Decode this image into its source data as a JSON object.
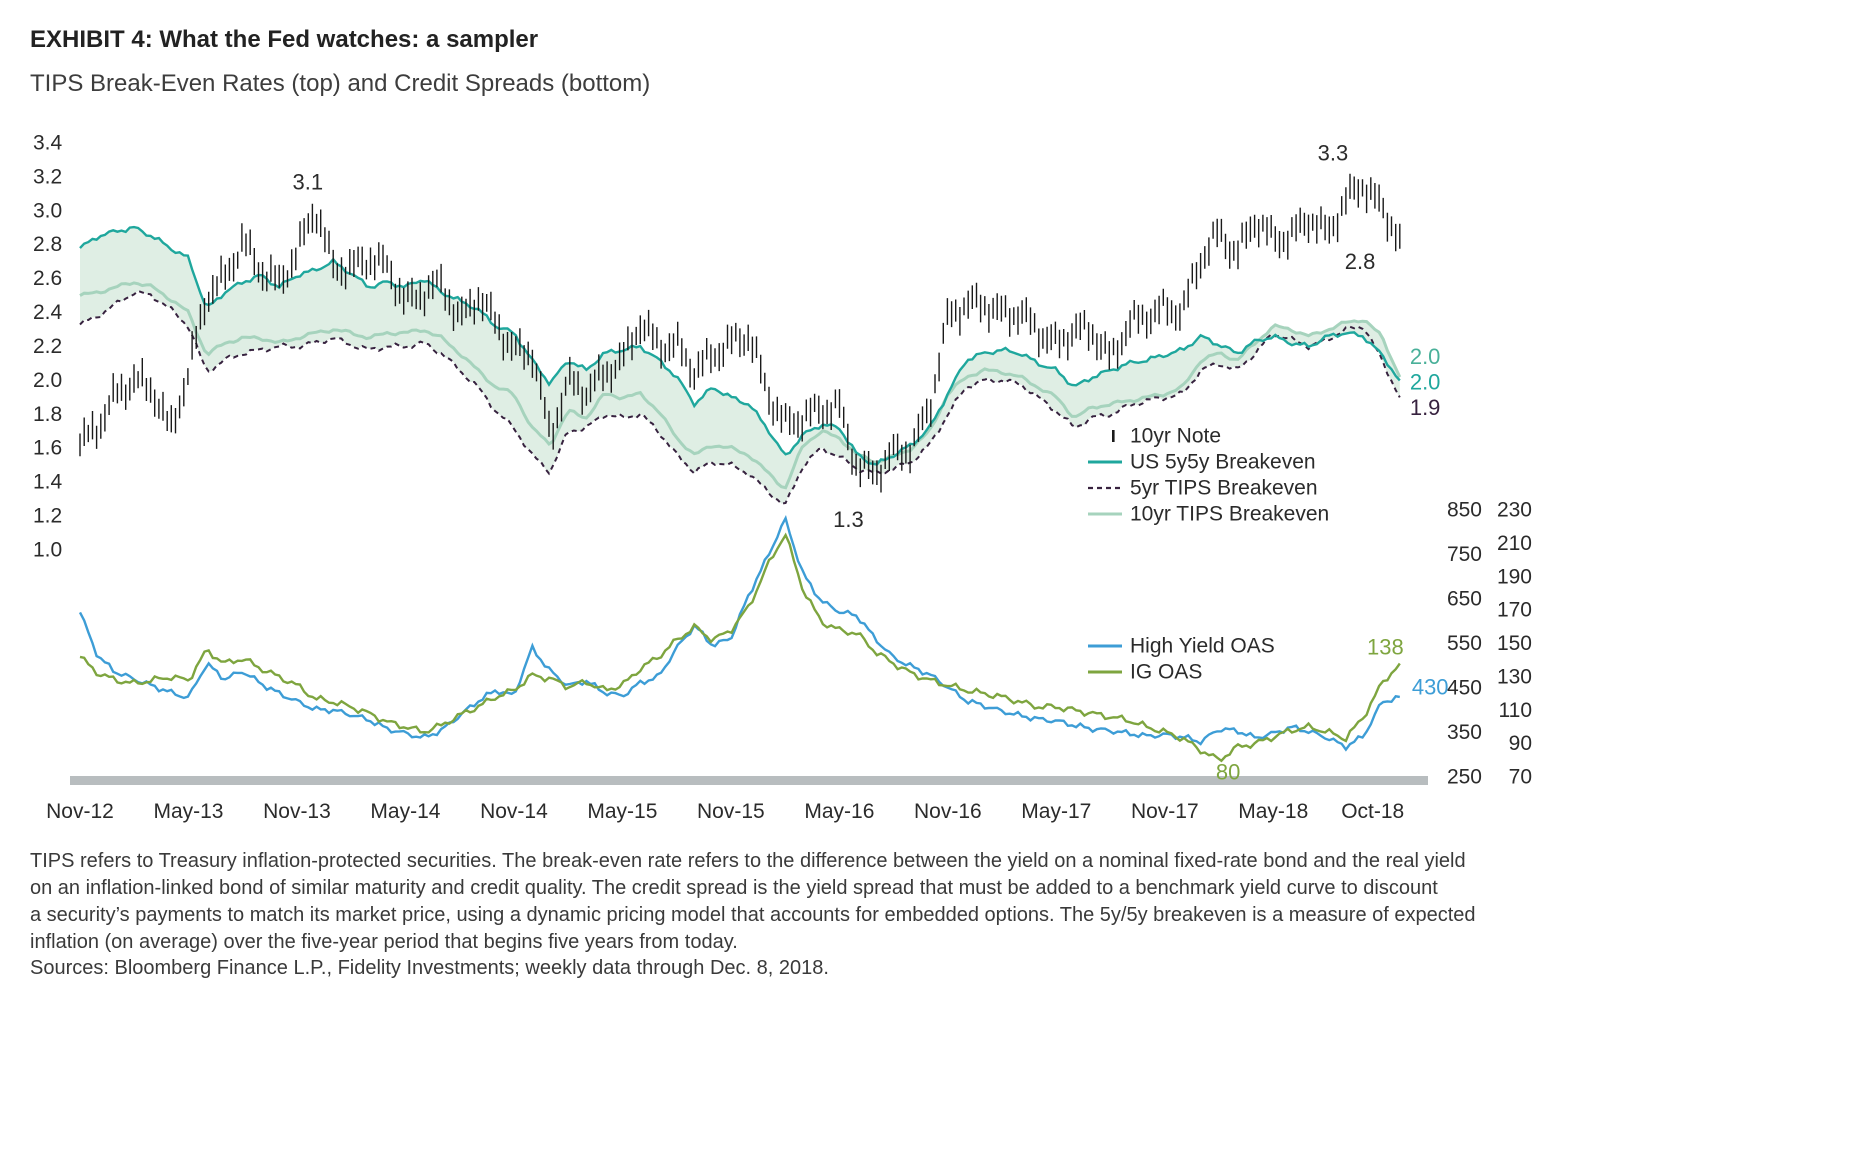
{
  "header": {
    "title": "EXHIBIT 4: What the Fed watches: a sampler",
    "subtitle": "TIPS Break-Even Rates (top) and Credit Spreads (bottom)"
  },
  "footer": {
    "lines": [
      "TIPS refers to Treasury inflation-protected securities. The break-even rate refers to the difference between the yield on a nominal fixed-rate bond and the real yield",
      "on an inflation-linked bond of similar maturity and credit quality. The credit spread is the yield spread that must be added to a benchmark yield curve to discount",
      "a security’s payments to match its market price, using a dynamic pricing model that accounts for embedded options. The 5y/5y breakeven is a measure of expected",
      "inflation (on average) over the five-year period that begins five years from today."
    ],
    "sources": "Sources: Bloomberg Finance L.P., Fidelity Investments; weekly data through Dec. 8, 2018."
  },
  "chart_data": {
    "type": "line",
    "title": "TIPS Break-Even Rates (top) and Credit Spreads (bottom)",
    "x_axis": {
      "start": "Nov-2012",
      "end": "Dec-2018",
      "values_frequency": "monthly",
      "tick_labels": [
        "Nov-12",
        "May-13",
        "Nov-13",
        "May-14",
        "Nov-14",
        "May-15",
        "Nov-15",
        "May-16",
        "Nov-16",
        "May-17",
        "Nov-17",
        "May-18",
        "Oct-18"
      ],
      "tick_month_index": [
        0,
        6,
        12,
        18,
        24,
        30,
        36,
        42,
        48,
        54,
        60,
        66,
        71.5
      ]
    },
    "top_panel": {
      "y_axis": {
        "side": "left",
        "min": 1.0,
        "max": 3.4,
        "tick_labels": [
          "3.4",
          "3.2",
          "3.0",
          "2.8",
          "2.6",
          "2.4",
          "2.2",
          "2.0",
          "1.8",
          "1.6",
          "1.4",
          "1.2",
          "1.0"
        ]
      },
      "series": [
        {
          "name": "10yr Note",
          "style": "ohlc-bars",
          "color": "#1a1a1a",
          "values": [
            1.62,
            1.73,
            1.92,
            2.0,
            1.95,
            1.7,
            2.05,
            2.5,
            2.6,
            2.82,
            2.65,
            2.57,
            2.75,
            3.02,
            2.67,
            2.66,
            2.72,
            2.67,
            2.46,
            2.52,
            2.57,
            2.35,
            2.5,
            2.34,
            2.17,
            2.17,
            1.67,
            2.0,
            1.93,
            2.04,
            2.12,
            2.34,
            2.2,
            2.21,
            2.05,
            2.15,
            2.22,
            2.27,
            1.93,
            1.74,
            1.78,
            1.83,
            1.84,
            1.48,
            1.46,
            1.57,
            1.6,
            1.84,
            2.37,
            2.45,
            2.45,
            2.39,
            2.4,
            2.29,
            2.21,
            2.3,
            2.29,
            2.12,
            2.33,
            2.38,
            2.42,
            2.41,
            2.72,
            2.87,
            2.74,
            2.95,
            2.83,
            2.85,
            2.96,
            2.86,
            3.06,
            3.16,
            3.01,
            2.85
          ]
        },
        {
          "name": "US 5y5y Breakeven",
          "style": "solid",
          "color": "#1fa79d",
          "values": [
            2.78,
            2.85,
            2.88,
            2.9,
            2.85,
            2.78,
            2.72,
            2.42,
            2.52,
            2.58,
            2.62,
            2.55,
            2.62,
            2.65,
            2.7,
            2.63,
            2.55,
            2.58,
            2.55,
            2.6,
            2.52,
            2.47,
            2.42,
            2.32,
            2.28,
            2.12,
            1.98,
            2.12,
            2.06,
            2.16,
            2.18,
            2.2,
            2.12,
            2.02,
            1.86,
            1.96,
            1.9,
            1.86,
            1.72,
            1.55,
            1.68,
            1.74,
            1.72,
            1.56,
            1.5,
            1.56,
            1.62,
            1.72,
            1.92,
            2.12,
            2.16,
            2.18,
            2.16,
            2.1,
            2.06,
            1.96,
            2.02,
            2.06,
            2.1,
            2.12,
            2.15,
            2.18,
            2.26,
            2.21,
            2.16,
            2.23,
            2.26,
            2.22,
            2.2,
            2.26,
            2.28,
            2.26,
            2.15,
            2.0
          ]
        },
        {
          "name": "5yr TIPS Breakeven",
          "style": "dashed",
          "color": "#37223f",
          "values": [
            2.33,
            2.38,
            2.45,
            2.52,
            2.5,
            2.42,
            2.32,
            2.05,
            2.12,
            2.16,
            2.18,
            2.2,
            2.2,
            2.22,
            2.25,
            2.21,
            2.18,
            2.2,
            2.2,
            2.22,
            2.16,
            2.06,
            1.96,
            1.82,
            1.72,
            1.56,
            1.46,
            1.7,
            1.72,
            1.8,
            1.78,
            1.8,
            1.7,
            1.56,
            1.46,
            1.52,
            1.5,
            1.45,
            1.35,
            1.26,
            1.5,
            1.6,
            1.55,
            1.48,
            1.45,
            1.48,
            1.52,
            1.62,
            1.8,
            1.96,
            2.0,
            2.0,
            1.98,
            1.9,
            1.82,
            1.72,
            1.78,
            1.8,
            1.85,
            1.88,
            1.9,
            1.92,
            2.06,
            2.1,
            2.06,
            2.16,
            2.28,
            2.24,
            2.2,
            2.24,
            2.3,
            2.32,
            2.12,
            1.9
          ]
        },
        {
          "name": "10yr TIPS Breakeven",
          "style": "solid",
          "color": "#a6d3bd",
          "values": [
            2.5,
            2.52,
            2.55,
            2.58,
            2.55,
            2.48,
            2.4,
            2.15,
            2.22,
            2.25,
            2.25,
            2.22,
            2.25,
            2.28,
            2.3,
            2.28,
            2.25,
            2.28,
            2.28,
            2.3,
            2.25,
            2.16,
            2.06,
            1.96,
            1.92,
            1.72,
            1.62,
            1.82,
            1.78,
            1.92,
            1.9,
            1.92,
            1.82,
            1.66,
            1.56,
            1.62,
            1.6,
            1.56,
            1.46,
            1.36,
            1.62,
            1.7,
            1.66,
            1.56,
            1.52,
            1.55,
            1.6,
            1.7,
            1.92,
            2.02,
            2.06,
            2.05,
            2.02,
            1.96,
            1.9,
            1.78,
            1.84,
            1.86,
            1.88,
            1.9,
            1.92,
            1.96,
            2.12,
            2.16,
            2.12,
            2.22,
            2.32,
            2.3,
            2.26,
            2.3,
            2.34,
            2.36,
            2.26,
            2.02
          ]
        }
      ],
      "band": {
        "between": [
          "US 5y5y Breakeven",
          "5yr TIPS Breakeven",
          "10yr TIPS Breakeven"
        ],
        "fill": "#d9ebdf"
      },
      "annotations": [
        {
          "text": "3.1",
          "month": 12.6,
          "value": 3.17,
          "color": "#2b2b2b",
          "anchor": "middle"
        },
        {
          "text": "3.3",
          "month": 69.3,
          "value": 3.34,
          "color": "#2b2b2b",
          "anchor": "middle"
        },
        {
          "text": "2.8",
          "month": 70.8,
          "value": 2.7,
          "color": "#2b2b2b",
          "anchor": "middle"
        },
        {
          "text": "2.0",
          "month": 73,
          "value": 2.14,
          "color": "#49b099",
          "anchor": "start",
          "dx": 10
        },
        {
          "text": "2.0",
          "month": 73,
          "value": 1.99,
          "color": "#1fa79d",
          "anchor": "start",
          "dx": 10
        },
        {
          "text": "1.9",
          "month": 73,
          "value": 1.84,
          "color": "#37223f",
          "anchor": "start",
          "dx": 10
        },
        {
          "text": "1.3",
          "month": 42.5,
          "value": 1.18,
          "color": "#2b2b2b",
          "anchor": "middle"
        }
      ]
    },
    "bottom_panel": {
      "y_axis_high_yield": {
        "side": "right",
        "min": 250,
        "max": 850,
        "color": "#3d9dd6",
        "tick_labels": [
          "850",
          "750",
          "650",
          "550",
          "450",
          "350",
          "250"
        ]
      },
      "y_axis_ig": {
        "side": "right",
        "min": 70,
        "max": 230,
        "color": "#7ea53f",
        "tick_labels": [
          "230",
          "210",
          "190",
          "170",
          "150",
          "130",
          "110",
          "90",
          "70"
        ]
      },
      "series": [
        {
          "name": "High Yield OAS",
          "axis": "high_yield",
          "style": "solid",
          "color": "#3d9dd6",
          "values": [
            620,
            520,
            485,
            470,
            455,
            440,
            428,
            505,
            470,
            488,
            460,
            438,
            420,
            402,
            400,
            390,
            378,
            358,
            348,
            338,
            355,
            388,
            420,
            445,
            432,
            540,
            488,
            455,
            466,
            440,
            432,
            462,
            475,
            540,
            590,
            545,
            562,
            660,
            742,
            830,
            705,
            645,
            622,
            612,
            560,
            518,
            498,
            480,
            452,
            422,
            410,
            398,
            388,
            380,
            376,
            366,
            358,
            354,
            348,
            342,
            345,
            340,
            329,
            358,
            354,
            338,
            348,
            362,
            352,
            338,
            318,
            342,
            418,
            430
          ]
        },
        {
          "name": "IG OAS",
          "axis": "ig",
          "style": "solid",
          "color": "#7ea53f",
          "values": [
            142,
            132,
            128,
            126,
            128,
            130,
            128,
            146,
            138,
            141,
            135,
            130,
            125,
            117,
            115,
            112,
            108,
            103,
            100,
            97,
            101,
            107,
            112,
            118,
            122,
            131,
            129,
            124,
            127,
            122,
            125,
            135,
            142,
            152,
            160,
            152,
            158,
            172,
            196,
            216,
            182,
            163,
            158,
            156,
            145,
            138,
            132,
            128,
            125,
            122,
            120,
            118,
            115,
            112,
            112,
            110,
            108,
            106,
            104,
            100,
            97,
            93,
            86,
            80,
            88,
            90,
            94,
            98,
            100,
            97,
            93,
            106,
            126,
            138
          ]
        }
      ],
      "annotations": [
        {
          "text": "138",
          "axis": "ig",
          "month": 72.2,
          "value": 148,
          "color": "#7ea53f",
          "anchor": "middle"
        },
        {
          "text": "430",
          "axis": "hy",
          "month": 73,
          "value": 452,
          "color": "#3d9dd6",
          "anchor": "start",
          "dx": 12
        },
        {
          "text": "80",
          "axis": "ig",
          "month": 63.5,
          "value": 73,
          "color": "#7ea53f",
          "anchor": "middle"
        }
      ]
    },
    "legend_top": [
      {
        "label": "10yr Note",
        "marker": "bar",
        "color": "#1a1a1a"
      },
      {
        "label": "US 5y5y Breakeven",
        "marker": "solid",
        "color": "#1fa79d"
      },
      {
        "label": "5yr TIPS Breakeven",
        "marker": "dashed",
        "color": "#37223f"
      },
      {
        "label": "10yr TIPS Breakeven",
        "marker": "solid",
        "color": "#a6d3bd"
      }
    ],
    "legend_bottom": [
      {
        "label": "High Yield OAS",
        "marker": "solid",
        "color": "#3d9dd6"
      },
      {
        "label": "IG OAS",
        "marker": "solid",
        "color": "#7ea53f"
      }
    ]
  }
}
